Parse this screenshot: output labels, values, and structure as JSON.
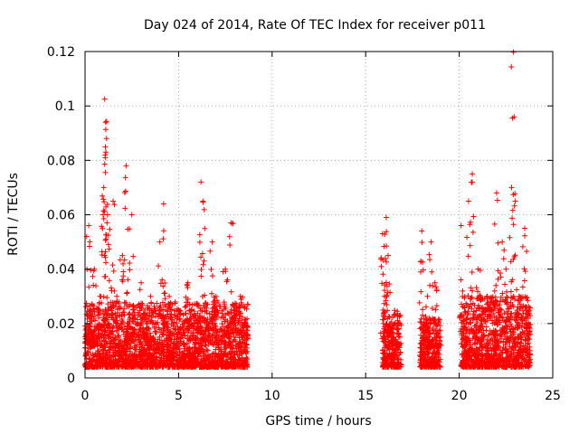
{
  "chart_data": {
    "type": "scatter",
    "title": "Day 024 of 2014, Rate Of TEC Index for receiver p011",
    "xlabel": "GPS time / hours",
    "ylabel": "ROTI / TECUs",
    "xlim": [
      0,
      25
    ],
    "ylim": [
      0,
      0.12
    ],
    "x_ticks": [
      0,
      5,
      10,
      15,
      20,
      25
    ],
    "x_tick_labels": [
      "0",
      "5",
      "10",
      "15",
      "20",
      "25"
    ],
    "y_ticks": [
      0,
      0.02,
      0.04,
      0.06,
      0.08,
      0.1,
      0.12
    ],
    "y_tick_labels": [
      "0",
      "0.02",
      "0.04",
      "0.06",
      "0.08",
      "0.1",
      "0.12"
    ],
    "grid": true,
    "marker": "+",
    "series": [
      {
        "name": "ROTI",
        "color": "#ff0000",
        "x": [
          0.1,
          0.2,
          0.3,
          0.4,
          0.5,
          0.6,
          0.8,
          1.0,
          1.05,
          1.1,
          1.15,
          1.2,
          1.3,
          1.5,
          1.7,
          2.0,
          2.2,
          2.3,
          2.5,
          3.0,
          3.2,
          3.5,
          4.0,
          4.2,
          4.3,
          4.5,
          5.0,
          5.5,
          6.0,
          6.2,
          6.3,
          6.5,
          6.8,
          7.0,
          7.5,
          7.8,
          8.0,
          8.3,
          8.6,
          15.9,
          16.0,
          16.1,
          16.2,
          16.3,
          16.5,
          16.7,
          18.0,
          18.1,
          18.3,
          18.5,
          18.7,
          18.9,
          20.1,
          20.3,
          20.5,
          20.7,
          21.0,
          21.2,
          21.5,
          22.0,
          22.3,
          22.5,
          22.8,
          22.9,
          23.0,
          23.2,
          23.5,
          23.7
        ],
        "y": [
          0.015,
          0.056,
          0.025,
          0.012,
          0.04,
          0.018,
          0.03,
          0.07,
          0.1025,
          0.094,
          0.088,
          0.06,
          0.02,
          0.065,
          0.03,
          0.045,
          0.078,
          0.02,
          0.06,
          0.035,
          0.025,
          0.03,
          0.05,
          0.064,
          0.02,
          0.03,
          0.025,
          0.035,
          0.02,
          0.072,
          0.065,
          0.02,
          0.05,
          0.03,
          0.04,
          0.057,
          0.025,
          0.03,
          0.02,
          0.053,
          0.03,
          0.059,
          0.045,
          0.02,
          0.015,
          0.012,
          0.054,
          0.02,
          0.03,
          0.05,
          0.035,
          0.012,
          0.056,
          0.03,
          0.065,
          0.075,
          0.04,
          0.02,
          0.03,
          0.068,
          0.05,
          0.04,
          0.07,
          0.1198,
          0.065,
          0.03,
          0.055,
          0.02
        ],
        "bands": [
          {
            "x_range": [
              0.0,
              8.7
            ],
            "y_range": [
              0.004,
              0.028
            ]
          },
          {
            "x_range": [
              15.9,
              16.9
            ],
            "y_range": [
              0.004,
              0.025
            ]
          },
          {
            "x_range": [
              17.9,
              19.0
            ],
            "y_range": [
              0.004,
              0.022
            ]
          },
          {
            "x_range": [
              20.1,
              23.8
            ],
            "y_range": [
              0.004,
              0.03
            ]
          }
        ]
      }
    ]
  }
}
